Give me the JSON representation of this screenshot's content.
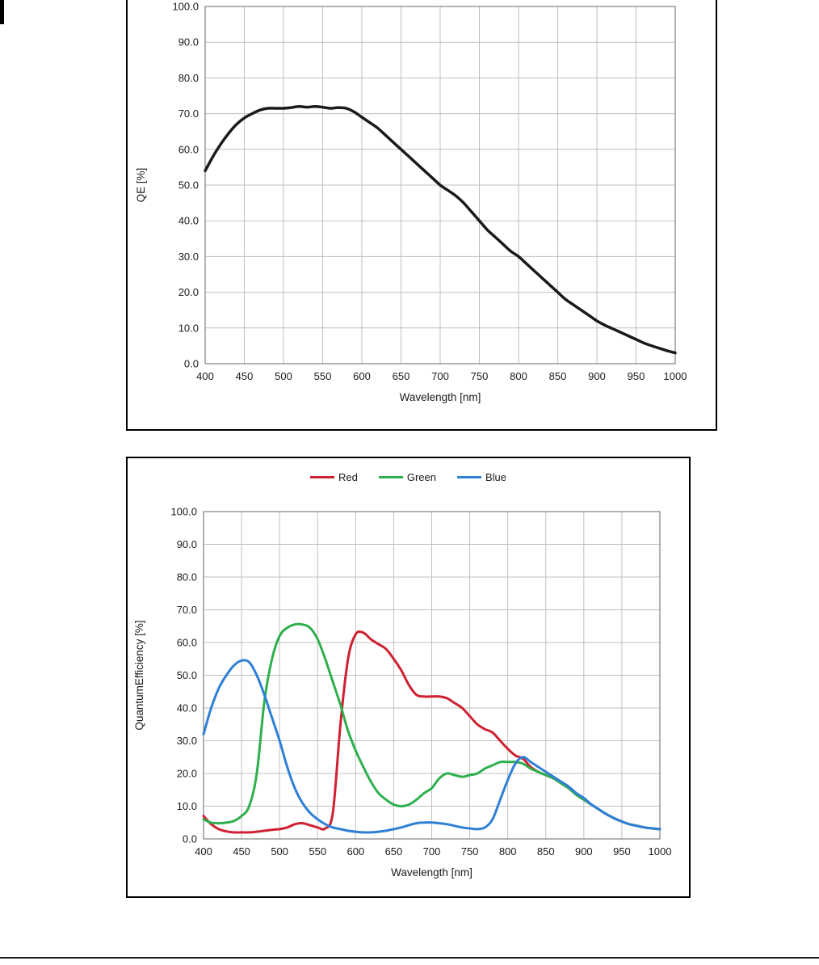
{
  "page": {
    "background": "#ffffff"
  },
  "chart_data": [
    {
      "id": "mono-qe-chart",
      "type": "line",
      "title": "",
      "xlabel": "Wavelength [nm]",
      "ylabel": "QE [%]",
      "xlim": [
        400,
        1000
      ],
      "ylim": [
        0,
        100
      ],
      "xticks": [
        400,
        450,
        500,
        550,
        600,
        650,
        700,
        750,
        800,
        850,
        900,
        950,
        1000
      ],
      "yticks": [
        0,
        10,
        20,
        30,
        40,
        50,
        60,
        70,
        80,
        90,
        100
      ],
      "grid": true,
      "grid_color": "#bfbfbf",
      "axis_color": "#808080",
      "x": [
        400,
        410,
        420,
        430,
        440,
        450,
        460,
        470,
        480,
        490,
        500,
        510,
        520,
        530,
        540,
        550,
        560,
        570,
        580,
        590,
        600,
        610,
        620,
        630,
        640,
        650,
        660,
        670,
        680,
        690,
        700,
        710,
        720,
        730,
        740,
        750,
        760,
        770,
        780,
        790,
        800,
        810,
        820,
        830,
        840,
        850,
        860,
        870,
        880,
        890,
        900,
        910,
        920,
        930,
        940,
        950,
        960,
        970,
        980,
        990,
        1000
      ],
      "series": [
        {
          "name": "QE",
          "color": "#1a1a1a",
          "width": 3.5,
          "values": [
            54,
            58,
            61.5,
            64.5,
            67,
            68.8,
            70,
            71,
            71.5,
            71.5,
            71.5,
            71.7,
            72,
            71.8,
            72,
            71.8,
            71.5,
            71.7,
            71.5,
            70.5,
            69,
            67.5,
            66,
            64,
            62,
            60,
            58,
            56,
            54,
            52,
            50,
            48.5,
            47,
            45,
            42.5,
            40,
            37.5,
            35.5,
            33.5,
            31.5,
            30,
            28,
            26,
            24,
            22,
            20,
            18,
            16.5,
            15,
            13.5,
            12,
            10.8,
            9.8,
            8.8,
            7.8,
            6.8,
            5.8,
            5,
            4.3,
            3.6,
            3
          ]
        }
      ]
    },
    {
      "id": "rgb-qe-chart",
      "type": "line",
      "title": "",
      "xlabel": "Wavelength [nm]",
      "ylabel": "QuantumEfficiency [%]",
      "xlim": [
        400,
        1000
      ],
      "ylim": [
        0,
        100
      ],
      "xticks": [
        400,
        450,
        500,
        550,
        600,
        650,
        700,
        750,
        800,
        850,
        900,
        950,
        1000
      ],
      "yticks": [
        0,
        10,
        20,
        30,
        40,
        50,
        60,
        70,
        80,
        90,
        100
      ],
      "grid": true,
      "grid_color": "#bfbfbf",
      "axis_color": "#808080",
      "legend": [
        "Red",
        "Green",
        "Blue"
      ],
      "legend_position": "top-center",
      "x": [
        400,
        410,
        420,
        430,
        440,
        450,
        460,
        470,
        480,
        490,
        500,
        510,
        520,
        530,
        540,
        550,
        560,
        570,
        580,
        590,
        600,
        610,
        620,
        630,
        640,
        650,
        660,
        670,
        680,
        690,
        700,
        710,
        720,
        730,
        740,
        750,
        760,
        770,
        780,
        790,
        800,
        810,
        820,
        830,
        840,
        850,
        860,
        870,
        880,
        890,
        900,
        910,
        920,
        930,
        940,
        950,
        960,
        970,
        980,
        990,
        1000
      ],
      "series": [
        {
          "name": "Red",
          "color": "#cf2030",
          "width": 3,
          "values": [
            7,
            4.5,
            3,
            2.3,
            2,
            2,
            2,
            2.2,
            2.5,
            2.8,
            3,
            3.5,
            4.5,
            4.8,
            4.2,
            3.5,
            3.2,
            8,
            35,
            55,
            62.5,
            63,
            61,
            59.5,
            58,
            55,
            51.5,
            47,
            44,
            43.5,
            43.5,
            43.5,
            43,
            41.5,
            40,
            37.5,
            35,
            33.5,
            32.5,
            30,
            27.5,
            25.5,
            24.5,
            22,
            20.5,
            19.5,
            18.5,
            17,
            15.5,
            13.5,
            12,
            10.5,
            9,
            7.5,
            6.3,
            5.3,
            4.5,
            4,
            3.5,
            3.2,
            3
          ]
        },
        {
          "name": "Green",
          "color": "#2eaf4d",
          "width": 3,
          "values": [
            6,
            5,
            4.8,
            5,
            5.5,
            7,
            10,
            20,
            42,
            55,
            62,
            64.5,
            65.5,
            65.5,
            64.5,
            61,
            55,
            48,
            41,
            33,
            27,
            22,
            17.5,
            14,
            12,
            10.5,
            10,
            10.5,
            12,
            14,
            15.5,
            18.5,
            20,
            19.5,
            19,
            19.5,
            20,
            21.5,
            22.5,
            23.5,
            23.5,
            23.5,
            23,
            21.5,
            20.5,
            19.5,
            18.5,
            17,
            15.5,
            13.5,
            12,
            10.5,
            9,
            7.5,
            6.3,
            5.3,
            4.5,
            4,
            3.5,
            3.2,
            3
          ]
        },
        {
          "name": "Blue",
          "color": "#2f7fd6",
          "width": 3,
          "values": [
            32,
            40,
            46,
            50,
            53,
            54.5,
            54,
            50,
            44,
            37,
            30,
            22,
            15.5,
            11,
            8,
            6,
            4.5,
            3.5,
            3,
            2.5,
            2.2,
            2,
            2,
            2.2,
            2.5,
            3,
            3.5,
            4.2,
            4.8,
            5,
            5,
            4.8,
            4.5,
            4,
            3.5,
            3.2,
            3,
            3.5,
            6,
            12,
            18,
            23,
            25,
            23.5,
            22,
            20.5,
            19,
            17.5,
            16,
            14,
            12.5,
            10.5,
            9,
            7.5,
            6.3,
            5.3,
            4.5,
            4,
            3.5,
            3.2,
            3
          ]
        }
      ]
    }
  ]
}
